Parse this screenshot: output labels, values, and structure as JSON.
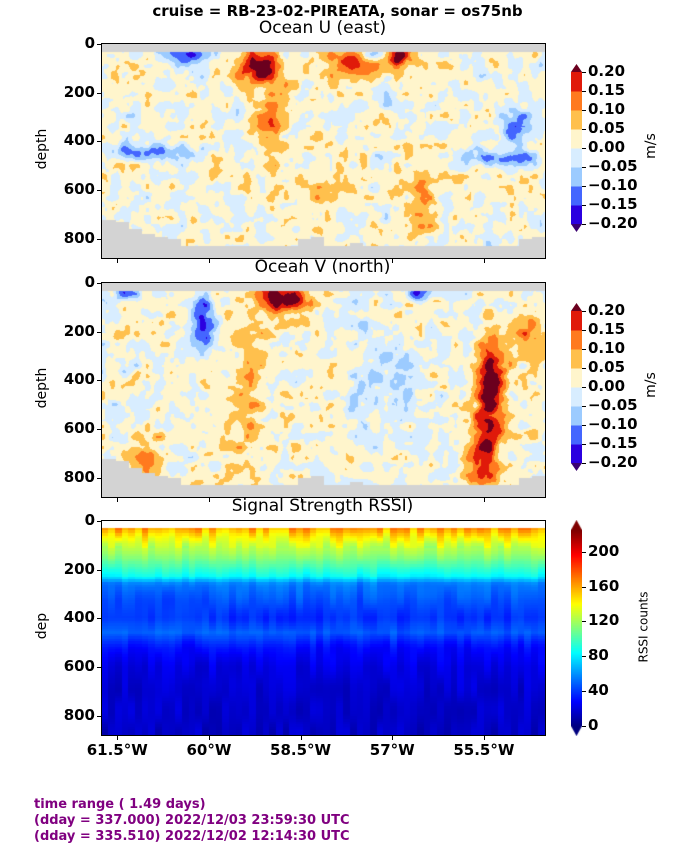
{
  "figure": {
    "suptitle": "cruise = RB-23-02-PIREATA,  sonar = os75nb"
  },
  "footer": {
    "line1": "time range ( 1.49 days)",
    "line2": "(dday = 337.000) 2022/12/03 23:59:30 UTC",
    "line3": "(dday = 335.510) 2022/12/02 12:14:30 UTC"
  },
  "chart_data": [
    {
      "type": "heatmap",
      "title": "Ocean U (east)",
      "xlabel": "",
      "ylabel": "depth",
      "x_tick_labels": [
        "61.5°W",
        "60°W",
        "58.5°W",
        "57°W",
        "55.5°W"
      ],
      "x_tick_values": [
        -61.5,
        -60,
        -58.5,
        -57,
        -55.5
      ],
      "xlim": [
        -61.75,
        -54.5
      ],
      "y_tick_labels": [
        "0",
        "200",
        "400",
        "600",
        "800"
      ],
      "y_tick_values": [
        0,
        200,
        400,
        600,
        800
      ],
      "ylim": [
        880,
        0
      ],
      "colorbar": {
        "label": "m/s",
        "tick_labels": [
          "0.20",
          "0.15",
          "0.10",
          "0.05",
          "0.00",
          "−0.05",
          "−0.10",
          "−0.15",
          "−0.20"
        ],
        "levels": [
          -0.2,
          -0.15,
          -0.1,
          -0.05,
          0,
          0.05,
          0.1,
          0.15,
          0.2
        ],
        "colors": [
          "#2b00e0",
          "#4466ff",
          "#9ccbff",
          "#d8edff",
          "#fff5cc",
          "#ffc04d",
          "#ff7a1f",
          "#e01a0a"
        ],
        "under_color": "#3a0070",
        "over_color": "#6b001e",
        "extend": "both"
      },
      "no_data_color": "#d3d3d3",
      "features": [
        {
          "lon": -59.2,
          "depth": 90,
          "value": 0.22,
          "lon_width": 0.35,
          "depth_width": 70
        },
        {
          "lon": -57.6,
          "depth": 70,
          "value": 0.15,
          "lon_width": 0.6,
          "depth_width": 60
        },
        {
          "lon": -56.9,
          "depth": 40,
          "value": 0.2,
          "lon_width": 0.3,
          "depth_width": 50
        },
        {
          "lon": -59.0,
          "depth": 320,
          "value": 0.1,
          "lon_width": 0.25,
          "depth_width": 200
        },
        {
          "lon": -56.5,
          "depth": 620,
          "value": 0.09,
          "lon_width": 0.25,
          "depth_width": 180
        },
        {
          "lon": -58.0,
          "depth": 600,
          "value": 0.07,
          "lon_width": 0.3,
          "depth_width": 150
        },
        {
          "lon": -60.4,
          "depth": 40,
          "value": -0.18,
          "lon_width": 0.4,
          "depth_width": 40
        },
        {
          "lon": -57.3,
          "depth": 40,
          "value": -0.17,
          "lon_width": 0.25,
          "depth_width": 30
        },
        {
          "lon": -55.0,
          "depth": 340,
          "value": -0.14,
          "lon_width": 0.25,
          "depth_width": 80
        },
        {
          "lon": -61.0,
          "depth": 440,
          "value": -0.12,
          "lon_width": 0.6,
          "depth_width": 30
        },
        {
          "lon": -55.2,
          "depth": 470,
          "value": -0.13,
          "lon_width": 0.6,
          "depth_width": 30
        },
        {
          "lon": -61.3,
          "depth": 150,
          "value": 0.07,
          "lon_width": 0.2,
          "depth_width": 50
        }
      ],
      "seafloor_depth": [
        720,
        730,
        760,
        780,
        790,
        800,
        830,
        830,
        830,
        830,
        830,
        830,
        830,
        830,
        830,
        800,
        790,
        830,
        830,
        815,
        830,
        830,
        830,
        830,
        830,
        830,
        830,
        830,
        830,
        830,
        830,
        830,
        800,
        790
      ]
    },
    {
      "type": "heatmap",
      "title": "Ocean V (north)",
      "xlabel": "",
      "ylabel": "depth",
      "x_tick_labels": [
        "61.5°W",
        "60°W",
        "58.5°W",
        "57°W",
        "55.5°W"
      ],
      "x_tick_values": [
        -61.5,
        -60,
        -58.5,
        -57,
        -55.5
      ],
      "xlim": [
        -61.75,
        -54.5
      ],
      "y_tick_labels": [
        "0",
        "200",
        "400",
        "600",
        "800"
      ],
      "y_tick_values": [
        0,
        200,
        400,
        600,
        800
      ],
      "ylim": [
        880,
        0
      ],
      "colorbar": {
        "label": "m/s",
        "tick_labels": [
          "0.20",
          "0.15",
          "0.10",
          "0.05",
          "0.00",
          "−0.05",
          "−0.10",
          "−0.15",
          "−0.20"
        ],
        "levels": [
          -0.2,
          -0.15,
          -0.1,
          -0.05,
          0,
          0.05,
          0.1,
          0.15,
          0.2
        ],
        "colors": [
          "#2b00e0",
          "#4466ff",
          "#9ccbff",
          "#d8edff",
          "#fff5cc",
          "#ffc04d",
          "#ff7a1f",
          "#e01a0a"
        ],
        "under_color": "#3a0070",
        "over_color": "#6b001e",
        "extend": "both"
      },
      "no_data_color": "#d3d3d3",
      "features": [
        {
          "lon": -58.8,
          "depth": 60,
          "value": 0.23,
          "lon_width": 0.4,
          "depth_width": 60
        },
        {
          "lon": -55.4,
          "depth": 400,
          "value": 0.22,
          "lon_width": 0.25,
          "depth_width": 200
        },
        {
          "lon": -55.5,
          "depth": 700,
          "value": 0.16,
          "lon_width": 0.25,
          "depth_width": 150
        },
        {
          "lon": -59.4,
          "depth": 450,
          "value": 0.07,
          "lon_width": 0.4,
          "depth_width": 350
        },
        {
          "lon": -60.1,
          "depth": 150,
          "value": -0.17,
          "lon_width": 0.2,
          "depth_width": 120
        },
        {
          "lon": -61.4,
          "depth": 40,
          "value": -0.17,
          "lon_width": 0.2,
          "depth_width": 30
        },
        {
          "lon": -56.6,
          "depth": 40,
          "value": -0.2,
          "lon_width": 0.2,
          "depth_width": 30
        },
        {
          "lon": -57.2,
          "depth": 400,
          "value": -0.06,
          "lon_width": 0.6,
          "depth_width": 200
        },
        {
          "lon": -61.0,
          "depth": 700,
          "value": 0.1,
          "lon_width": 0.3,
          "depth_width": 100
        },
        {
          "lon": -54.8,
          "depth": 200,
          "value": 0.1,
          "lon_width": 0.3,
          "depth_width": 100
        }
      ],
      "seafloor_depth": [
        720,
        730,
        760,
        780,
        790,
        800,
        830,
        830,
        830,
        830,
        830,
        830,
        830,
        830,
        830,
        800,
        790,
        830,
        830,
        815,
        830,
        830,
        830,
        830,
        830,
        830,
        830,
        830,
        830,
        830,
        830,
        830,
        800,
        790
      ]
    },
    {
      "type": "heatmap",
      "title": "Signal Strength RSSI)",
      "xlabel": "",
      "ylabel": "dep",
      "x_tick_labels": [
        "61.5°W",
        "60°W",
        "58.5°W",
        "57°W",
        "55.5°W"
      ],
      "x_tick_values": [
        -61.5,
        -60,
        -58.5,
        -57,
        -55.5
      ],
      "xlim": [
        -61.75,
        -54.5
      ],
      "y_tick_labels": [
        "0",
        "200",
        "400",
        "600",
        "800"
      ],
      "y_tick_values": [
        0,
        200,
        400,
        600,
        800
      ],
      "ylim": [
        880,
        0
      ],
      "colorbar": {
        "label": "RSSI counts",
        "tick_labels": [
          "200",
          "160",
          "120",
          "80",
          "40",
          "0"
        ],
        "tick_values": [
          200,
          160,
          120,
          80,
          40,
          0
        ],
        "range": [
          0,
          225
        ],
        "colormap": "jet",
        "extend": "both"
      },
      "depth_profile": {
        "depth": [
          30,
          60,
          100,
          150,
          200,
          230,
          260,
          330,
          400,
          460,
          520,
          600,
          700,
          880
        ],
        "rssi": [
          165,
          145,
          130,
          115,
          95,
          85,
          55,
          45,
          38,
          48,
          30,
          22,
          18,
          15
        ]
      }
    }
  ]
}
